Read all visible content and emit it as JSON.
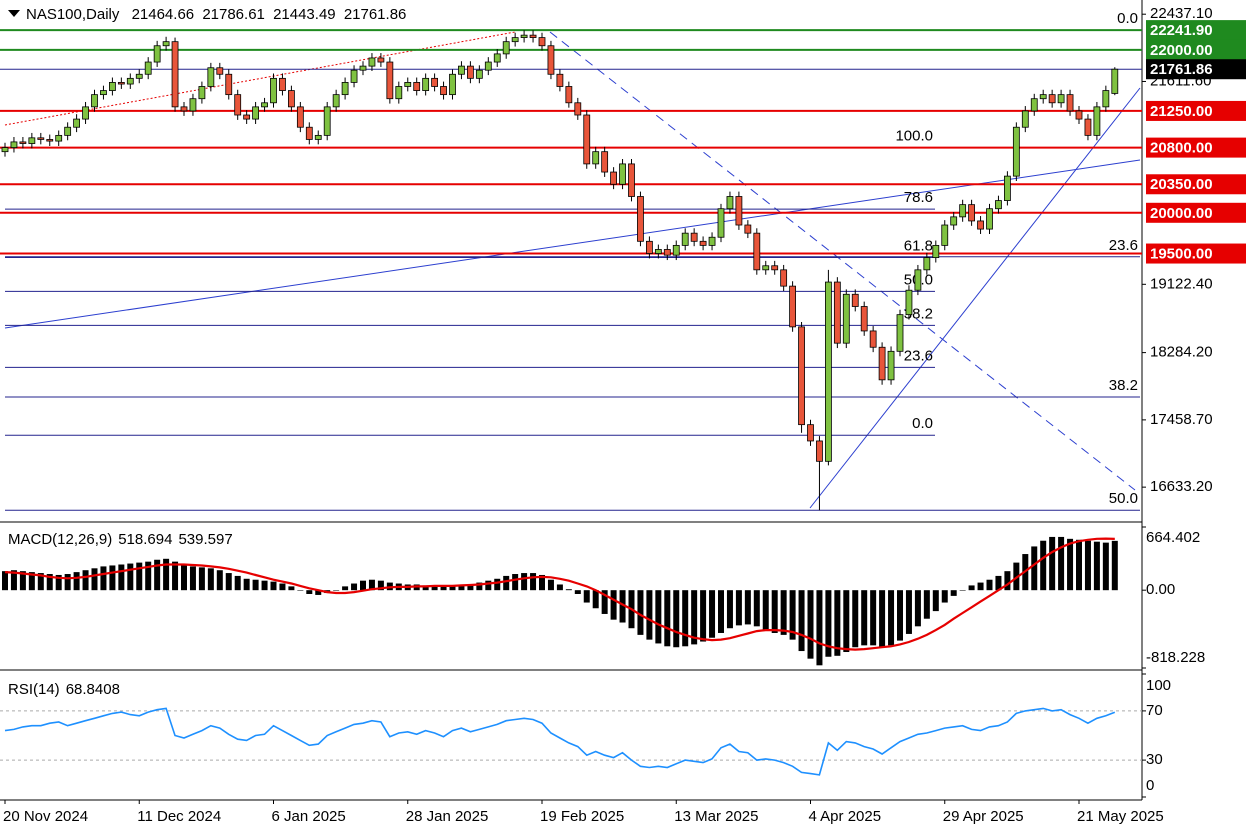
{
  "chart_data": [
    {
      "type": "candlestick",
      "title": "NAS100,Daily",
      "categories": [
        "20 Nov 2024",
        null,
        null,
        null,
        null,
        null,
        null,
        null,
        null,
        null,
        null,
        null,
        null,
        null,
        null,
        "11 Dec 2024",
        null,
        null,
        null,
        null,
        null,
        null,
        null,
        null,
        null,
        null,
        null,
        null,
        null,
        null,
        "6 Jan 2025",
        null,
        null,
        null,
        null,
        null,
        null,
        null,
        null,
        null,
        null,
        null,
        null,
        null,
        null,
        "28 Jan 2025",
        null,
        null,
        null,
        null,
        null,
        null,
        null,
        null,
        null,
        null,
        null,
        null,
        null,
        null,
        "19 Feb 2025",
        null,
        null,
        null,
        null,
        null,
        null,
        null,
        null,
        null,
        null,
        null,
        null,
        null,
        null,
        "13 Mar 2025",
        null,
        null,
        null,
        null,
        null,
        null,
        null,
        null,
        null,
        null,
        null,
        null,
        null,
        null,
        "4 Apr 2025",
        null,
        null,
        null,
        null,
        null,
        null,
        null,
        null,
        null,
        null,
        null,
        null,
        null,
        null,
        "29 Apr 2025",
        null,
        null,
        null,
        null,
        null,
        null,
        null,
        null,
        null,
        null,
        null,
        null,
        null,
        null,
        "21 May 2025",
        null,
        null,
        null,
        null
      ],
      "open": [
        20750,
        20800,
        20870,
        20850,
        20920,
        20900,
        20880,
        20950,
        21050,
        21150,
        21300,
        21450,
        21500,
        21600,
        21580,
        21650,
        21700,
        21850,
        22050,
        22100,
        21300,
        21250,
        21400,
        21550,
        21780,
        21700,
        21450,
        21200,
        21150,
        21300,
        21350,
        21650,
        21500,
        21300,
        21050,
        20900,
        20950,
        21300,
        21450,
        21600,
        21750,
        21800,
        21900,
        21850,
        21400,
        21550,
        21600,
        21500,
        21650,
        21550,
        21450,
        21700,
        21800,
        21650,
        21750,
        21850,
        21950,
        22100,
        22150,
        22180,
        22150,
        22050,
        21700,
        21550,
        21350,
        21200,
        20600,
        20750,
        20500,
        20350,
        20600,
        20200,
        19650,
        19500,
        19550,
        19480,
        19600,
        19750,
        19650,
        19600,
        19700,
        20050,
        20200,
        19850,
        19750,
        19300,
        19350,
        19300,
        19100,
        18600,
        17400,
        17200,
        16950,
        19150,
        18400,
        19000,
        18850,
        18550,
        18350,
        17950,
        18300,
        18750,
        19050,
        19300,
        19450,
        19600,
        19850,
        19950,
        20100,
        19900,
        19800,
        20050,
        20150,
        20450,
        21050,
        21250,
        21400,
        21450,
        21350,
        21450,
        21250,
        21150,
        20950,
        21300,
        21464.66
      ],
      "high": [
        20860,
        20930,
        20930,
        20980,
        20980,
        20960,
        21010,
        21110,
        21210,
        21360,
        21510,
        21560,
        21660,
        21660,
        21710,
        21760,
        21910,
        22110,
        22160,
        22150,
        21360,
        21460,
        21610,
        21840,
        21840,
        21760,
        21510,
        21260,
        21360,
        21410,
        21710,
        21710,
        21560,
        21360,
        21110,
        21010,
        21360,
        21510,
        21660,
        21810,
        21860,
        21960,
        21960,
        21910,
        21610,
        21660,
        21660,
        21710,
        21710,
        21610,
        21760,
        21860,
        21860,
        21810,
        21910,
        22010,
        22160,
        22210,
        22240,
        22240,
        22210,
        22110,
        21760,
        21610,
        21410,
        21260,
        20810,
        20810,
        20560,
        20660,
        20660,
        20260,
        19710,
        19610,
        19610,
        19660,
        19810,
        19810,
        19710,
        19760,
        20110,
        20260,
        20260,
        19910,
        19810,
        19410,
        19410,
        19360,
        19160,
        18660,
        17460,
        17260,
        19300,
        19210,
        19060,
        19060,
        18910,
        18610,
        18410,
        18360,
        18810,
        19110,
        19360,
        19510,
        19660,
        19910,
        20010,
        20160,
        20160,
        19960,
        20110,
        20210,
        20510,
        21110,
        21310,
        21460,
        21510,
        21510,
        21510,
        21510,
        21310,
        21210,
        21360,
        21560,
        21786.61
      ],
      "low": [
        20690,
        20740,
        20790,
        20790,
        20840,
        20820,
        20820,
        20890,
        20990,
        21090,
        21240,
        21390,
        21440,
        21520,
        21520,
        21590,
        21640,
        21790,
        21990,
        21240,
        21190,
        21190,
        21340,
        21490,
        21640,
        21390,
        21140,
        21090,
        21090,
        21240,
        21290,
        21440,
        21240,
        20990,
        20840,
        20840,
        20890,
        21240,
        21390,
        21540,
        21690,
        21740,
        21790,
        21340,
        21340,
        21490,
        21440,
        21440,
        21490,
        21390,
        21390,
        21640,
        21590,
        21590,
        21690,
        21790,
        21890,
        22040,
        22090,
        22090,
        21990,
        21640,
        21490,
        21290,
        21140,
        20540,
        20540,
        20440,
        20290,
        20290,
        20140,
        19590,
        19440,
        19440,
        19420,
        19420,
        19540,
        19590,
        19540,
        19540,
        19640,
        19990,
        19790,
        19690,
        19240,
        19240,
        19240,
        19040,
        18540,
        17300,
        17140,
        16350,
        16900,
        18340,
        18340,
        18790,
        18490,
        18290,
        17890,
        17890,
        18240,
        18690,
        18990,
        19240,
        19390,
        19540,
        19790,
        19890,
        19840,
        19740,
        19740,
        19990,
        20090,
        20390,
        20990,
        21190,
        21340,
        21290,
        21290,
        21190,
        21090,
        20890,
        20890,
        21240,
        21443.49
      ],
      "close": [
        20800,
        20870,
        20850,
        20920,
        20900,
        20880,
        20950,
        21050,
        21150,
        21300,
        21450,
        21500,
        21600,
        21580,
        21650,
        21700,
        21850,
        22050,
        22100,
        21300,
        21250,
        21400,
        21550,
        21780,
        21700,
        21450,
        21200,
        21150,
        21300,
        21350,
        21650,
        21500,
        21300,
        21050,
        20900,
        20950,
        21300,
        21450,
        21600,
        21750,
        21800,
        21900,
        21850,
        21400,
        21550,
        21600,
        21500,
        21650,
        21550,
        21450,
        21700,
        21800,
        21650,
        21750,
        21850,
        21950,
        22100,
        22150,
        22180,
        22150,
        22050,
        21700,
        21550,
        21350,
        21200,
        20600,
        20750,
        20500,
        20350,
        20600,
        20200,
        19650,
        19500,
        19550,
        19480,
        19600,
        19750,
        19650,
        19600,
        19700,
        20050,
        20200,
        19850,
        19750,
        19300,
        19350,
        19300,
        19100,
        18600,
        17400,
        17200,
        16950,
        19150,
        18400,
        19000,
        18850,
        18550,
        18350,
        17950,
        18300,
        18750,
        19050,
        19300,
        19450,
        19600,
        19850,
        19950,
        20100,
        19900,
        19800,
        20050,
        20150,
        20450,
        21050,
        21250,
        21400,
        21450,
        21350,
        21450,
        21250,
        21150,
        20950,
        21300,
        21500,
        21761.86
      ],
      "up_color": "#7fc241",
      "down_color": "#e8553a",
      "price_line_color": "#23238e",
      "ylim": [
        16230,
        22550
      ],
      "yticks": [
        {
          "value": 22437.1,
          "label": "22437.10"
        },
        {
          "value": 21611.6,
          "label": "21611.60"
        },
        {
          "value": 19122.4,
          "label": "19122.40"
        },
        {
          "value": 18284.2,
          "label": "18284.20"
        },
        {
          "value": 17458.7,
          "label": "17458.70"
        },
        {
          "value": 16633.2,
          "label": "16633.20"
        }
      ],
      "levels": [
        {
          "value": 22241.9,
          "label": "22241.90",
          "color": "#1f8a1f"
        },
        {
          "value": 22000,
          "label": "22000.00",
          "color": "#1f8a1f"
        },
        {
          "value": 21250,
          "label": "21250.00",
          "color": "#e60000"
        },
        {
          "value": 20800,
          "label": "20800.00",
          "color": "#e60000"
        },
        {
          "value": 20350,
          "label": "20350.00",
          "color": "#e60000"
        },
        {
          "value": 20000,
          "label": "20000.00",
          "color": "#e60000"
        },
        {
          "value": 19500,
          "label": "19500.00",
          "color": "#e60000"
        }
      ],
      "fibs": [
        {
          "from": 17270,
          "to": 20800,
          "color": "#23238e",
          "levels": [
            {
              "value": 0,
              "label": "0.0"
            },
            23.6,
            38.2,
            {
              "value": 50,
              "label": "50.0"
            },
            61.8,
            78.6,
            {
              "value": 100,
              "label": "100.0"
            }
          ]
        },
        {
          "from": 22240,
          "to": 10460,
          "color": "#23238e",
          "levels": [
            {
              "value": 0,
              "label": "0.0"
            },
            23.6,
            38.2,
            {
              "value": 50,
              "label": "50.0"
            }
          ]
        }
      ]
    },
    {
      "type": "bar",
      "title": "MACD(12,26,9)",
      "series": [
        {
          "type": "bar",
          "color": "#000000",
          "values": [
            200,
            210,
            200,
            190,
            180,
            170,
            160,
            170,
            190,
            210,
            230,
            250,
            260,
            270,
            280,
            290,
            300,
            320,
            330,
            300,
            270,
            250,
            240,
            230,
            210,
            180,
            150,
            120,
            110,
            100,
            90,
            70,
            40,
            0,
            -40,
            -50,
            -30,
            0,
            40,
            70,
            100,
            110,
            100,
            80,
            70,
            60,
            60,
            50,
            50,
            40,
            40,
            50,
            60,
            80,
            100,
            120,
            150,
            170,
            180,
            180,
            160,
            110,
            60,
            10,
            -40,
            -130,
            -190,
            -250,
            -310,
            -340,
            -400,
            -470,
            -520,
            -560,
            -590,
            -600,
            -590,
            -570,
            -540,
            -500,
            -450,
            -400,
            -370,
            -360,
            -380,
            -420,
            -450,
            -470,
            -520,
            -640,
            -720,
            -790,
            -700,
            -690,
            -650,
            -600,
            -580,
            -580,
            -600,
            -580,
            -530,
            -460,
            -380,
            -300,
            -220,
            -130,
            -60,
            0,
            50,
            80,
            110,
            150,
            200,
            290,
            380,
            460,
            520,
            560,
            560,
            540,
            530,
            520,
            510,
            500,
            518.694
          ]
        },
        {
          "type": "line",
          "color": "#e60000",
          "values": [
            190,
            185,
            175,
            165,
            155,
            140,
            130,
            125,
            130,
            140,
            155,
            170,
            185,
            200,
            215,
            230,
            245,
            260,
            270,
            270,
            270,
            265,
            260,
            250,
            240,
            225,
            205,
            185,
            160,
            135,
            110,
            90,
            70,
            45,
            20,
            0,
            -20,
            -30,
            -30,
            -20,
            -5,
            10,
            20,
            30,
            35,
            35,
            40,
            40,
            45,
            45,
            45,
            50,
            55,
            60,
            70,
            80,
            95,
            110,
            125,
            135,
            140,
            135,
            120,
            100,
            70,
            40,
            0,
            -50,
            -100,
            -150,
            -200,
            -260,
            -310,
            -360,
            -400,
            -440,
            -470,
            -500,
            -515,
            -525,
            -520,
            -505,
            -480,
            -455,
            -430,
            -420,
            -420,
            -425,
            -440,
            -470,
            -510,
            -560,
            -590,
            -610,
            -620,
            -625,
            -620,
            -610,
            -600,
            -590,
            -570,
            -545,
            -510,
            -470,
            -420,
            -365,
            -300,
            -240,
            -180,
            -120,
            -60,
            0,
            60,
            130,
            200,
            270,
            340,
            400,
            450,
            490,
            515,
            530,
            540,
            542,
            539.597
          ]
        }
      ],
      "ylim": [
        -818.228,
        664.402
      ],
      "yticks": [
        664.402,
        {
          "value": 0,
          "label": "0.00"
        },
        -818.228
      ]
    },
    {
      "type": "line",
      "title": "RSI(14)",
      "series": [
        {
          "color": "#1e90ff",
          "values": [
            54,
            55,
            57,
            58,
            58,
            60,
            61,
            58,
            60,
            62,
            64,
            66,
            68,
            69,
            67,
            66,
            69,
            71,
            72,
            50,
            48,
            51,
            54,
            58,
            56,
            51,
            47,
            46,
            50,
            51,
            58,
            54,
            50,
            46,
            42,
            43,
            50,
            53,
            56,
            59,
            60,
            62,
            61,
            49,
            52,
            53,
            51,
            54,
            52,
            49,
            54,
            56,
            53,
            55,
            57,
            59,
            62,
            63,
            64,
            63,
            60,
            52,
            48,
            44,
            41,
            34,
            37,
            34,
            32,
            36,
            30,
            25,
            24,
            25,
            24,
            27,
            30,
            29,
            28,
            31,
            40,
            43,
            37,
            36,
            30,
            31,
            30,
            28,
            25,
            20,
            19,
            18,
            44,
            38,
            45,
            44,
            41,
            39,
            35,
            40,
            45,
            48,
            51,
            52,
            54,
            56,
            57,
            58,
            55,
            54,
            57,
            58,
            61,
            68,
            70,
            71,
            72,
            70,
            71,
            67,
            64,
            60,
            64,
            66,
            68.8408
          ]
        }
      ],
      "ylim": [
        0,
        100
      ],
      "yticks": [
        100,
        70,
        30,
        0
      ],
      "levels": [
        70,
        30
      ]
    }
  ]
}
